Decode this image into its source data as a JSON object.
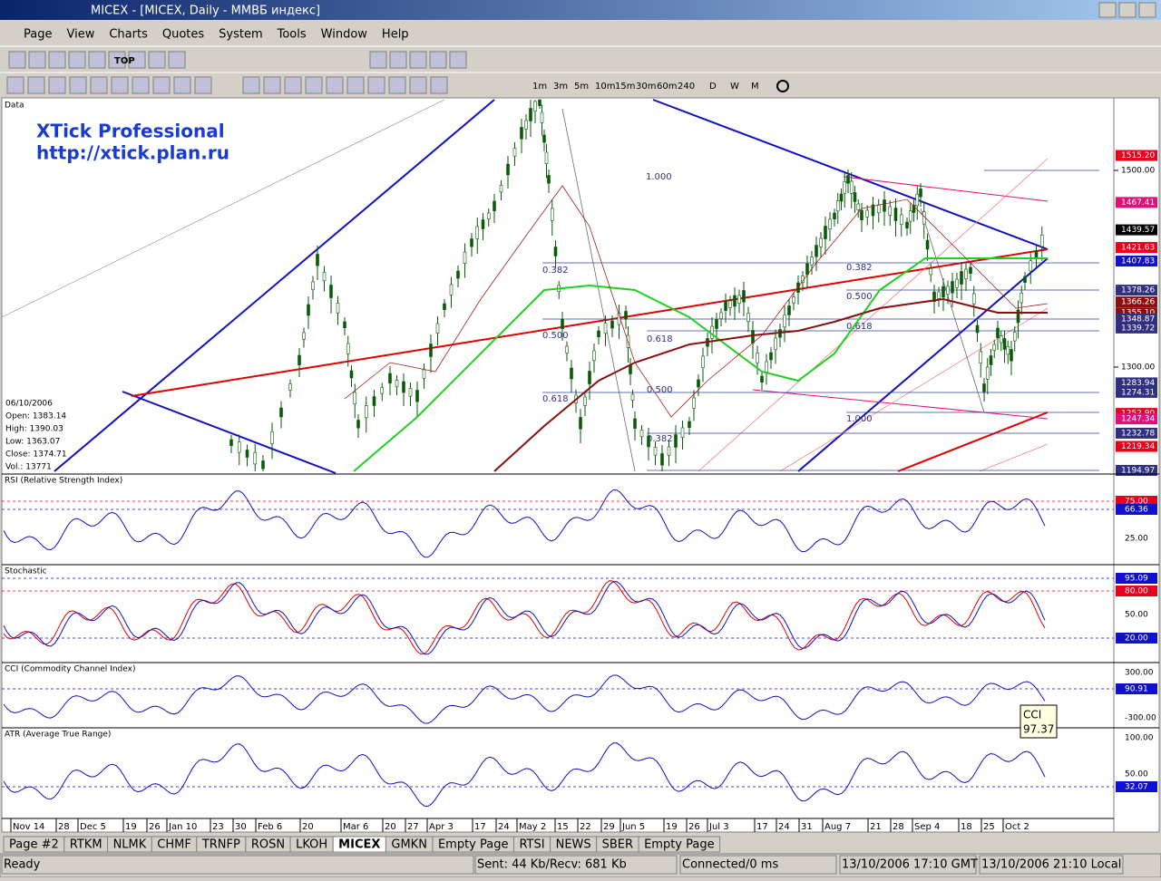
{
  "window": {
    "title": "MICEX - [MICEX, Daily - ММВБ индекс]"
  },
  "menu": [
    "Page",
    "View",
    "Charts",
    "Quotes",
    "System",
    "Tools",
    "Window",
    "Help"
  ],
  "toolbar": {
    "top_button": "TOP",
    "timeframes": [
      "1m",
      "3m",
      "5m",
      "10m",
      "15m",
      "30m",
      "60m",
      "240",
      "D",
      "W",
      "M"
    ]
  },
  "chart": {
    "main": {
      "label": "Data",
      "watermark": [
        "XTick Professional",
        "http://xtick.plan.ru"
      ],
      "info": [
        "06/10/2006",
        "Open: 1383.14",
        "High: 1390.03",
        "Low: 1363.07",
        "Close: 1374.71",
        "Vol.: 13771"
      ],
      "axis": [
        {
          "value": 1500,
          "label": "1500.00"
        },
        {
          "value": 1300,
          "label": "1300.00"
        }
      ],
      "price_tags": [
        {
          "value": 1515.2,
          "label": "1515.20",
          "color": "#e8001c"
        },
        {
          "value": 1467.41,
          "label": "1467.41",
          "color": "#e0107a"
        },
        {
          "value": 1439.57,
          "label": "1439.57",
          "color": "#000000"
        },
        {
          "value": 1421.63,
          "label": "1421.63",
          "color": "#e8001c"
        },
        {
          "value": 1407.83,
          "label": "1407.83",
          "color": "#1010d0"
        },
        {
          "value": 1378.26,
          "label": "1378.26",
          "color": "#303080"
        },
        {
          "value": 1366.26,
          "label": "1366.26",
          "color": "#8a1010"
        },
        {
          "value": 1355.1,
          "label": "1355.10",
          "color": "#8a1010"
        },
        {
          "value": 1348.87,
          "label": "1348.87",
          "color": "#303080"
        },
        {
          "value": 1339.72,
          "label": "1339.72",
          "color": "#303080"
        },
        {
          "value": 1283.94,
          "label": "1283.94",
          "color": "#303080"
        },
        {
          "value": 1274.31,
          "label": "1274.31",
          "color": "#303080"
        },
        {
          "value": 1252.9,
          "label": "1252.90",
          "color": "#e8001c"
        },
        {
          "value": 1247.34,
          "label": "1247.34",
          "color": "#e0107a"
        },
        {
          "value": 1232.78,
          "label": "1232.78",
          "color": "#303080"
        },
        {
          "value": 1219.34,
          "label": "1219.34",
          "color": "#e8001c"
        },
        {
          "value": 1194.97,
          "label": "1194.97",
          "color": "#303080"
        }
      ],
      "fib_labels": [
        "1.000",
        "0.382",
        "0.500",
        "0.618",
        "0.618",
        "0.500",
        "0.382",
        "0.382",
        "0.500",
        "0.618",
        "1.000"
      ]
    },
    "rsi": {
      "label": "RSI (Relative Strength Index)",
      "tags": [
        {
          "label": "75.00",
          "color": "#e8001c"
        },
        {
          "label": "66.36",
          "color": "#1010d0"
        },
        {
          "label": "25.00",
          "color": ""
        }
      ]
    },
    "stochastic": {
      "label": "Stochastic",
      "tags": [
        {
          "label": "95.09",
          "color": "#1010d0"
        },
        {
          "label": "80.00",
          "color": "#e8001c"
        },
        {
          "label": "50.00",
          "color": ""
        },
        {
          "label": "20.00",
          "color": "#1010d0"
        }
      ]
    },
    "cci": {
      "label": "CCI (Commodity Channel Index)",
      "tags": [
        {
          "label": "300.00",
          "color": ""
        },
        {
          "label": "90.91",
          "color": "#1010d0"
        },
        {
          "label": "-300.00",
          "color": ""
        }
      ],
      "tooltip": [
        "CCI",
        "97.37"
      ]
    },
    "atr": {
      "label": "ATR (Average True Range)",
      "tags": [
        {
          "label": "100.00",
          "color": ""
        },
        {
          "label": "50.00",
          "color": ""
        },
        {
          "label": "32.07",
          "color": "#1010d0"
        }
      ]
    },
    "dates": [
      "Nov 14",
      "28",
      "Dec 5",
      "19",
      "26",
      "Jan 10",
      "23",
      "30",
      "Feb 6",
      "20",
      "Mar 6",
      "20",
      "27",
      "Apr 3",
      "17",
      "24",
      "May 2",
      "15",
      "22",
      "29",
      "Jun 5",
      "19",
      "26",
      "Jul 3",
      "17",
      "24",
      "31",
      "Aug 7",
      "21",
      "28",
      "Sep 4",
      "18",
      "25",
      "Oct 2"
    ]
  },
  "tabs": [
    "Page #2",
    "RTKM",
    "NLMK",
    "CHMF",
    "TRNFP",
    "ROSN",
    "LKOH",
    "MICEX",
    "GMKN",
    "Empty Page",
    "RTSI",
    "NEWS",
    "SBER",
    "Empty Page"
  ],
  "active_tab": 7,
  "status": [
    "Ready",
    "Sent: 44 Kb/Recv: 681 Kb",
    "Connected/0 ms",
    "13/10/2006 17:10 GMT",
    "13/10/2006 21:10 Local"
  ]
}
